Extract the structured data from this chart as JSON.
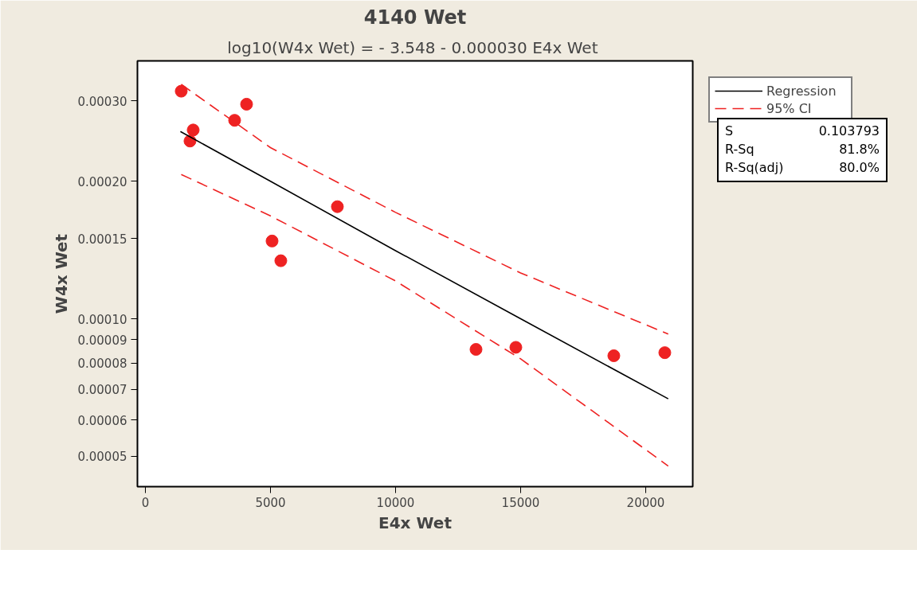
{
  "chart_data": {
    "type": "scatter",
    "title": "4140 Wet",
    "subtitle": "log10(W4x Wet) =  - 3.548 - 0.000030 E4x Wet",
    "xlabel": "E4x Wet",
    "ylabel": "W4x Wet",
    "x": [
      1433,
      1911,
      1783,
      3567,
      4045,
      5064,
      5414,
      7675,
      13217,
      14809,
      18726,
      20764
    ],
    "series": [
      {
        "color": "#ee2222",
        "values": [
          0.000315,
          0.000259,
          0.000245,
          0.000272,
          0.000295,
          0.000148,
          0.000134,
          0.000176,
          8.57e-05,
          8.66e-05,
          8.3e-05,
          8.43e-05
        ]
      },
      {
        "name": "Regression",
        "type": "line",
        "marker": "none",
        "color": "#000000",
        "line_style": "solid",
        "x": [
          1400,
          5000,
          10000,
          15000,
          20900
        ],
        "values": [
          0.000257,
          0.0002,
          0.000141,
          0.0001,
          6.68e-05
        ]
      },
      {
        "name": "95% CI",
        "type": "line",
        "marker": "none",
        "color": "#ee2222",
        "line_style": "dashed",
        "x": [
          1433,
          5000,
          10000,
          15000,
          20900
        ],
        "values": [
          0.000326,
          0.000237,
          0.000171,
          0.000126,
          9.26e-05
        ]
      },
      {
        "type": "line",
        "marker": "none",
        "color": "#ee2222",
        "line_style": "dashed",
        "x": [
          1433,
          5000,
          10000,
          15000,
          20900
        ],
        "values": [
          0.000207,
          0.000168,
          0.000121,
          8.17e-05,
          4.76e-05
        ]
      }
    ],
    "marker": "circle",
    "log": "y",
    "grid": false,
    "legend": "right",
    "xlim": [
      -318,
      21880
    ],
    "xticks": [
      0,
      5000,
      10000,
      15000,
      20000
    ],
    "ylim": [
      4.29e-05,
      0.000367
    ],
    "yticks": [
      {
        "value": 5e-05,
        "label": "0.00005"
      },
      {
        "value": 6e-05,
        "label": "0.00006"
      },
      {
        "value": 7e-05,
        "label": "0.00007"
      },
      {
        "value": 8e-05,
        "label": "0.00008"
      },
      {
        "value": 9e-05,
        "label": "0.00009"
      },
      {
        "value": 0.0001,
        "label": "0.00010"
      },
      {
        "value": 0.00015,
        "label": "0.00015"
      },
      {
        "value": 0.0002,
        "label": "0.00020"
      },
      {
        "value": 0.0003,
        "label": "0.00030"
      }
    ],
    "annotations": [
      "S 0.103793",
      "R-Sq 81.8%",
      "R-Sq(adj) 80.0%"
    ]
  }
}
